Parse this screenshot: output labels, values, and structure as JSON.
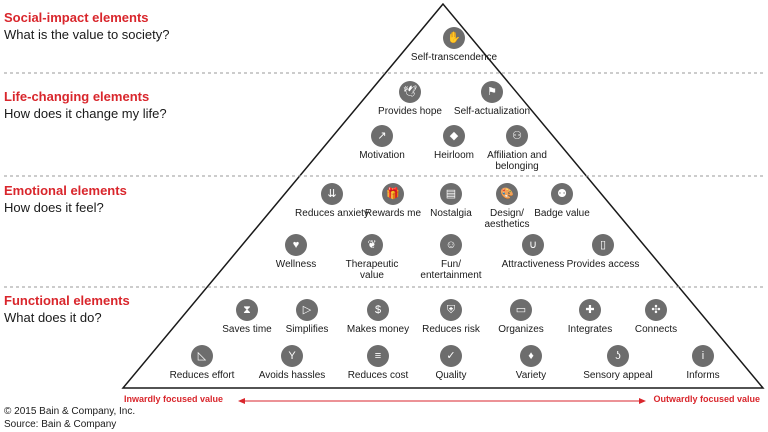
{
  "tiers": [
    {
      "title": "Social-impact elements",
      "question": "What is the value to society?"
    },
    {
      "title": "Life-changing elements",
      "question": "How does it change my life?"
    },
    {
      "title": "Emotional elements",
      "question": "How does it feel?"
    },
    {
      "title": "Functional elements",
      "question": "What does it do?"
    }
  ],
  "elements": {
    "social": [
      {
        "label": "Self-transcendence",
        "icon": "hands-icon",
        "glyph": "✋"
      }
    ],
    "life_row1": [
      {
        "label": "Provides hope",
        "icon": "dove-icon",
        "glyph": "🕊"
      },
      {
        "label": "Self-actualization",
        "icon": "figure-icon",
        "glyph": "⚑"
      }
    ],
    "life_row2": [
      {
        "label": "Motivation",
        "icon": "stairs-icon",
        "glyph": "↗"
      },
      {
        "label": "Heirloom",
        "icon": "diamond-icon",
        "glyph": "◆"
      },
      {
        "label": "Affiliation and belonging",
        "icon": "network-icon",
        "glyph": "⚇"
      }
    ],
    "emotional_row1": [
      {
        "label": "Reduces anxiety",
        "icon": "arrows-down-icon",
        "glyph": "⇊"
      },
      {
        "label": "Rewards me",
        "icon": "gift-icon",
        "glyph": "🎁"
      },
      {
        "label": "Nostalgia",
        "icon": "radio-icon",
        "glyph": "▤"
      },
      {
        "label": "Design/ aesthetics",
        "icon": "palette-icon",
        "glyph": "🎨"
      },
      {
        "label": "Badge value",
        "icon": "people-icon",
        "glyph": "⚉"
      }
    ],
    "emotional_row2": [
      {
        "label": "Wellness",
        "icon": "heart-icon",
        "glyph": "♥"
      },
      {
        "label": "Therapeutic value",
        "icon": "leaf-icon",
        "glyph": "❦"
      },
      {
        "label": "Fun/ entertainment",
        "icon": "chat-icon",
        "glyph": "☺"
      },
      {
        "label": "Attractiveness",
        "icon": "magnet-icon",
        "glyph": "∪"
      },
      {
        "label": "Provides access",
        "icon": "door-icon",
        "glyph": "▯"
      }
    ],
    "functional_row1": [
      {
        "label": "Saves time",
        "icon": "hourglass-icon",
        "glyph": "⧗"
      },
      {
        "label": "Simplifies",
        "icon": "funnel-icon",
        "glyph": "▷"
      },
      {
        "label": "Makes money",
        "icon": "money-icon",
        "glyph": "$"
      },
      {
        "label": "Reduces risk",
        "icon": "shield-icon",
        "glyph": "⛨"
      },
      {
        "label": "Organizes",
        "icon": "folder-icon",
        "glyph": "▭"
      },
      {
        "label": "Integrates",
        "icon": "puzzle-icon",
        "glyph": "✚"
      },
      {
        "label": "Connects",
        "icon": "nodes-icon",
        "glyph": "✣"
      }
    ],
    "functional_row2": [
      {
        "label": "Reduces effort",
        "icon": "ramp-icon",
        "glyph": "◺"
      },
      {
        "label": "Avoids hassles",
        "icon": "hands-up-icon",
        "glyph": "Y"
      },
      {
        "label": "Reduces cost",
        "icon": "coins-icon",
        "glyph": "≡"
      },
      {
        "label": "Quality",
        "icon": "check-icon",
        "glyph": "✓"
      },
      {
        "label": "Variety",
        "icon": "shapes-icon",
        "glyph": "♦"
      },
      {
        "label": "Sensory appeal",
        "icon": "nose-icon",
        "glyph": "ʖ"
      },
      {
        "label": "Informs",
        "icon": "info-icon",
        "glyph": "i"
      }
    ]
  },
  "axis": {
    "left": "Inwardly focused value",
    "right": "Outwardly focused value"
  },
  "footer": {
    "copyright": "© 2015 Bain & Company, Inc.",
    "source": "Source: Bain & Company"
  },
  "colors": {
    "accent": "#d9262c",
    "icon": "#6d6d6d",
    "line": "#1a1a1a",
    "divider": "#9a9a9a"
  }
}
